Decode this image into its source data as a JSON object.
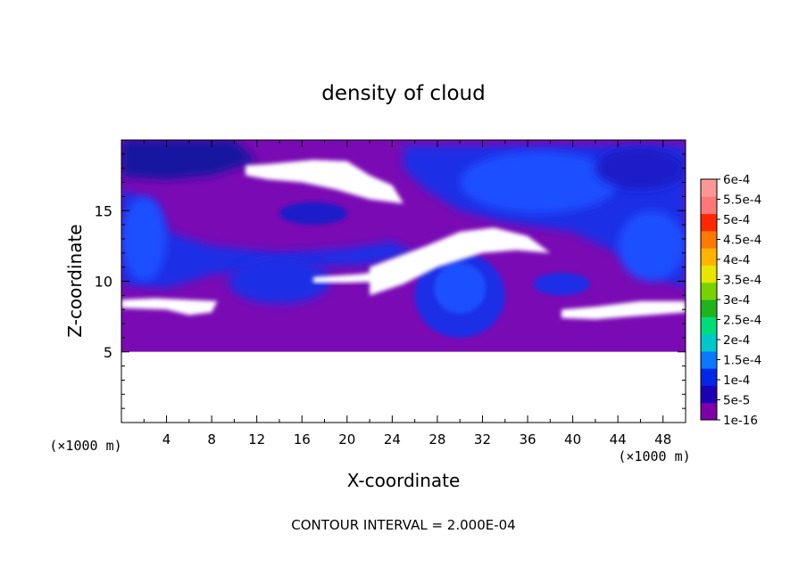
{
  "chart_data": {
    "type": "heatmap",
    "title": "density of cloud",
    "xlabel": "X-coordinate",
    "ylabel": "Z-coordinate",
    "x_unit_label": "(×1000 m)",
    "y_unit_label": "(×1000 m)",
    "xlim": [
      0,
      50
    ],
    "ylim": [
      0,
      20
    ],
    "x_ticks": [
      4,
      8,
      12,
      16,
      20,
      24,
      28,
      32,
      36,
      40,
      44,
      48
    ],
    "y_ticks": [
      5,
      10,
      15
    ],
    "footer": "CONTOUR INTERVAL = 2.000E-04",
    "colorbar": {
      "labels": [
        "6e-4",
        "5.5e-4",
        "5e-4",
        "4.5e-4",
        "4e-4",
        "3.5e-4",
        "3e-4",
        "2.5e-4",
        "2e-4",
        "1.5e-4",
        "1e-4",
        "5e-5",
        "1e-16"
      ],
      "colors": [
        "#7d00a8",
        "#1e00b4",
        "#0028e6",
        "#0a78ff",
        "#00c8c8",
        "#00dc78",
        "#1eb41e",
        "#78d200",
        "#e6e600",
        "#ffb400",
        "#ff7800",
        "#ff2800",
        "#ff7878",
        "#ff9696"
      ]
    },
    "field_colors": {
      "base": "#7a0ab4",
      "light_blue": "#1e50ff",
      "blue": "#1a2ee6",
      "dark_blue": "#1e1ec8",
      "navy": "#1414a0",
      "empty": "#ffffff"
    }
  }
}
